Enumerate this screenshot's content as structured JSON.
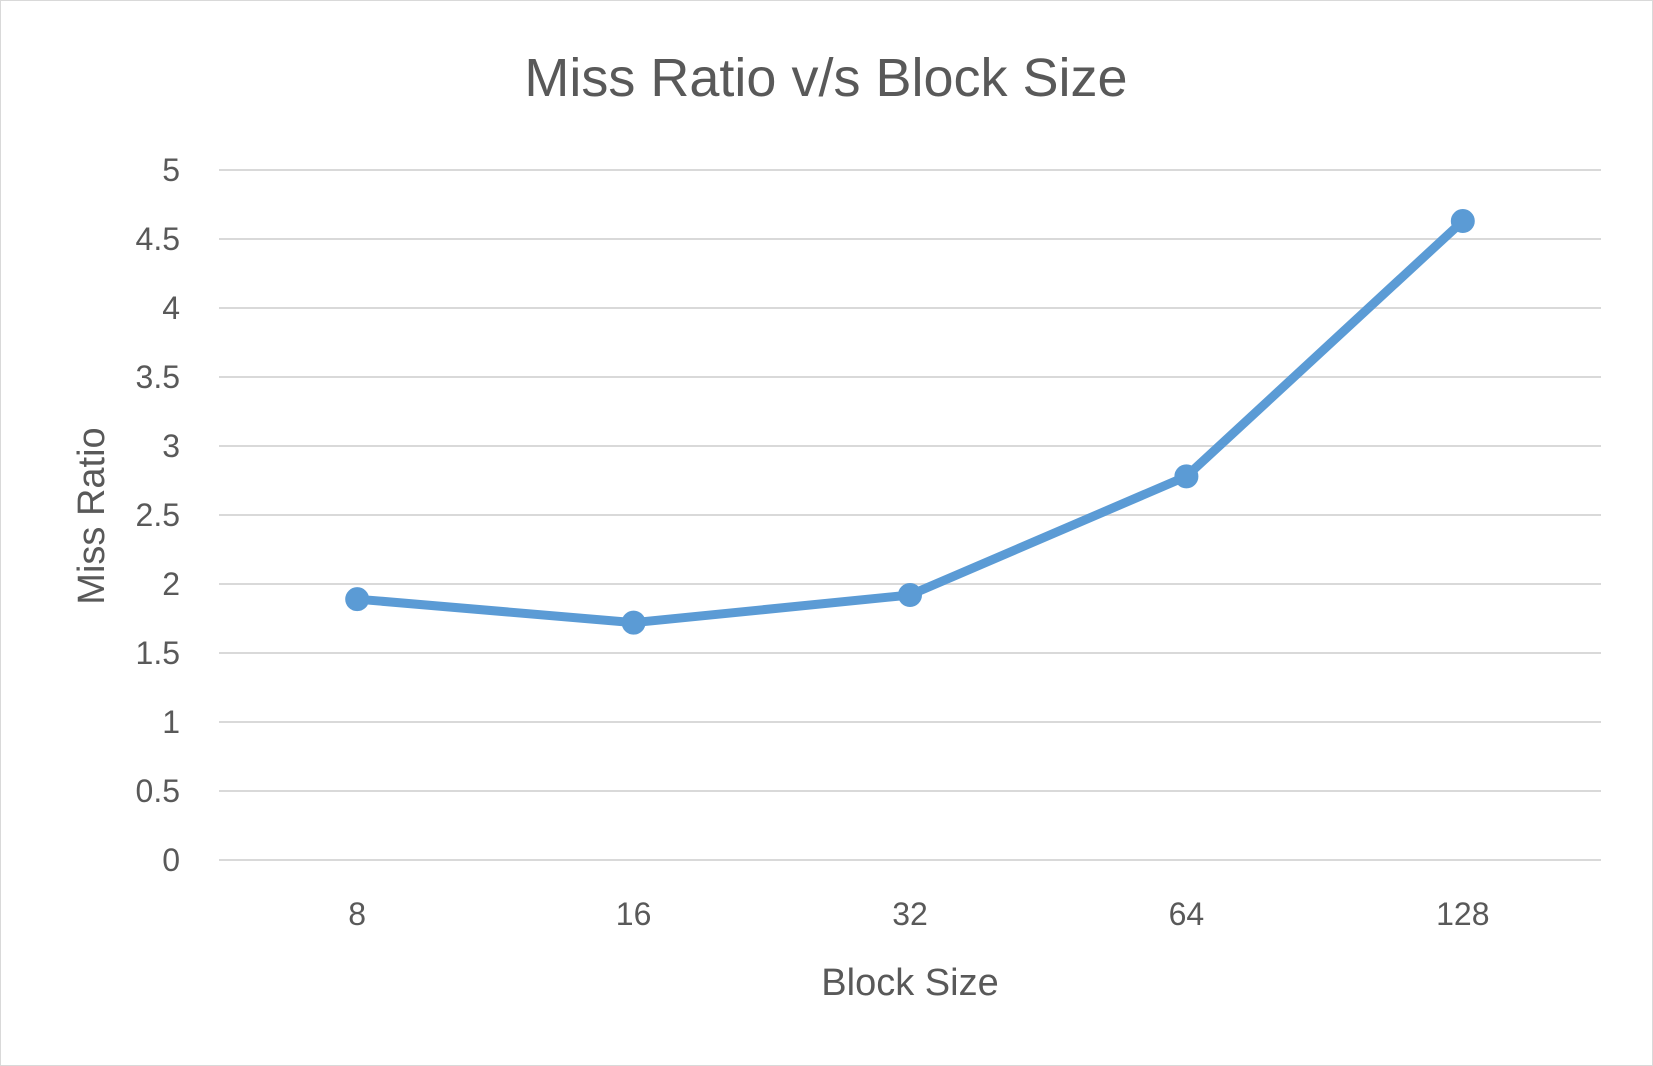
{
  "chart_data": {
    "type": "line",
    "title": "Miss Ratio v/s Block Size",
    "xlabel": "Block Size",
    "ylabel": "Miss Ratio",
    "categories": [
      "8",
      "16",
      "32",
      "64",
      "128"
    ],
    "series": [
      {
        "values": [
          1.89,
          1.72,
          1.92,
          2.78,
          4.63
        ]
      }
    ],
    "ylim": [
      0,
      5
    ],
    "yticks": [
      "0",
      "0.5",
      "1",
      "1.5",
      "2",
      "2.5",
      "3",
      "3.5",
      "4",
      "4.5",
      "5"
    ],
    "ytick_values": [
      0,
      0.5,
      1,
      1.5,
      2,
      2.5,
      3,
      3.5,
      4,
      4.5,
      5
    ],
    "grid": true,
    "legend": "none",
    "colors": {
      "series": "#5b9bd5",
      "grid": "#d9d9d9",
      "text": "#595959"
    }
  }
}
